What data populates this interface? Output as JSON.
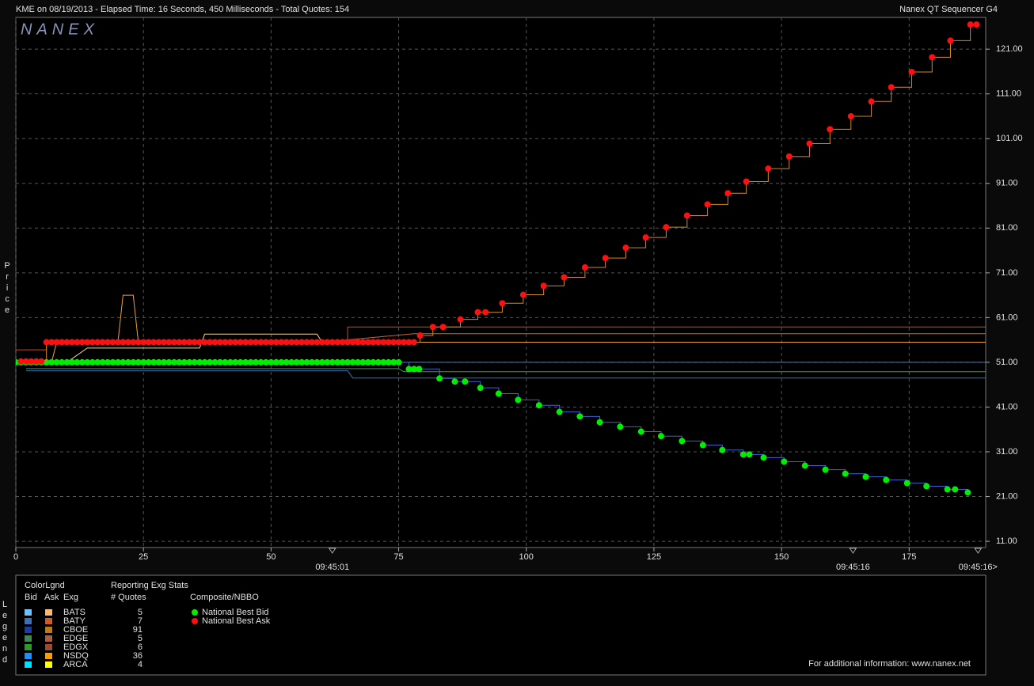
{
  "chart_data": {
    "type": "line",
    "title": "KME on 08/19/2013  -  Elapsed Time: 16 Seconds, 450 Milliseconds  -  Total Quotes: 154",
    "subtitle": "Nanex QT Sequencer G4",
    "logo": "NANEX",
    "y_label": "Price",
    "footer": "For additional information: www.nanex.net",
    "xlim": [
      0,
      190
    ],
    "ylim": [
      9.6,
      128.1
    ],
    "xticks": [
      0,
      25,
      50,
      75,
      100,
      125,
      150,
      175
    ],
    "yticks": [
      {
        "value": 11,
        "label": "11.00"
      },
      {
        "value": 21,
        "label": "21.00"
      },
      {
        "value": 31,
        "label": "31.00"
      },
      {
        "value": 41,
        "label": "41.00"
      },
      {
        "value": 51,
        "label": "51.00"
      },
      {
        "value": 61,
        "label": "61.00"
      },
      {
        "value": 71,
        "label": "71.00"
      },
      {
        "value": 81,
        "label": "81.00"
      },
      {
        "value": 91,
        "label": "91.00"
      },
      {
        "value": 101,
        "label": "101.00"
      },
      {
        "value": 111,
        "label": "111.00"
      },
      {
        "value": 121,
        "label": "121.00"
      }
    ],
    "grid": true,
    "x_annotations": [
      {
        "x": 62,
        "label": "09:45:01"
      },
      {
        "x": 164,
        "label": "09:45:16"
      },
      {
        "x": 188.5,
        "label": "09:45:16>"
      }
    ],
    "series": [
      {
        "name": "National Best Bid",
        "color": "#00ee00",
        "line_color": "#3a66d0",
        "x": [
          0,
          1,
          2,
          3,
          4,
          5,
          6,
          7,
          8,
          9,
          10,
          11,
          12,
          13,
          14,
          15,
          16,
          17,
          18,
          19,
          20,
          21,
          22,
          23,
          24,
          25,
          26,
          27,
          28,
          29,
          30,
          31,
          32,
          33,
          34,
          35,
          36,
          37,
          38,
          39,
          40,
          41,
          42,
          43,
          44,
          45,
          46,
          47,
          48,
          49,
          50,
          51,
          52,
          53,
          54,
          55,
          56,
          57,
          58,
          59,
          60,
          61,
          62,
          63,
          64,
          65,
          66,
          67,
          68,
          69,
          70,
          71,
          72,
          73,
          74,
          75,
          77,
          78,
          79,
          83,
          86,
          88,
          91,
          94.6,
          98.4,
          102.5,
          106.5,
          110.5,
          114.4,
          118.4,
          122.5,
          126.4,
          130.5,
          134.6,
          138.4,
          142.5,
          143.7,
          146.5,
          150.5,
          154.6,
          158.6,
          162.5,
          166.5,
          170.5,
          174.6,
          178.4,
          182.5,
          184,
          186.5
        ],
        "values": [
          51,
          51,
          51,
          51,
          51,
          51,
          51,
          51,
          51,
          51,
          51,
          51,
          51,
          51,
          51,
          51,
          51,
          51,
          51,
          51,
          51,
          51,
          51,
          51,
          51,
          51,
          51,
          51,
          51,
          51,
          51,
          51,
          51,
          51,
          51,
          51,
          51,
          51,
          51,
          51,
          51,
          51,
          51,
          51,
          51,
          51,
          51,
          51,
          51,
          51,
          51,
          51,
          51,
          51,
          51,
          51,
          51,
          51,
          51,
          51,
          51,
          51,
          51,
          51,
          51,
          51,
          51,
          51,
          51,
          51,
          51,
          51,
          51,
          51,
          51,
          51,
          49.5,
          49.5,
          49.5,
          47.4,
          46.7,
          46.7,
          45.3,
          44,
          42.6,
          41.4,
          39.9,
          38.9,
          37.6,
          36.6,
          35.5,
          34.5,
          33.4,
          32.5,
          31.4,
          30.4,
          30.4,
          29.7,
          28.8,
          27.9,
          27,
          26.1,
          25.4,
          24.7,
          24,
          23.3,
          22.6,
          22.6,
          21.9
        ]
      },
      {
        "name": "National Best Ask",
        "color": "#ff1010",
        "line_color": "#d08a20",
        "x": [
          1,
          2,
          3,
          4,
          5,
          6,
          7,
          8,
          9,
          10,
          11,
          12,
          13,
          14,
          15,
          16,
          17,
          18,
          19,
          20,
          21,
          22,
          23,
          24,
          25,
          26,
          27,
          28,
          29,
          30,
          31,
          32,
          33,
          34,
          35,
          36,
          37,
          38,
          39,
          40,
          41,
          42,
          43,
          44,
          45,
          46,
          47,
          48,
          49,
          50,
          51,
          52,
          53,
          54,
          55,
          56,
          57,
          58,
          59,
          60,
          61,
          62,
          63,
          64,
          65,
          66,
          67,
          68,
          69,
          70,
          71,
          72,
          73,
          74,
          75,
          76,
          77,
          78,
          79.2,
          81.7,
          83.7,
          87.1,
          90.5,
          92,
          95.3,
          99.4,
          103.4,
          107.4,
          111.5,
          115.5,
          119.5,
          123.4,
          127.4,
          131.5,
          135.5,
          139.5,
          143.1,
          147.4,
          151.5,
          155.5,
          159.5,
          163.6,
          167.6,
          171.5,
          175.5,
          179.5,
          183.1,
          187,
          188.2
        ],
        "values": [
          51.2,
          51.2,
          51.2,
          51.2,
          51.2,
          55.5,
          55.5,
          55.5,
          55.5,
          55.5,
          55.5,
          55.5,
          55.5,
          55.5,
          55.5,
          55.5,
          55.5,
          55.5,
          55.5,
          55.5,
          55.5,
          55.5,
          55.5,
          55.5,
          55.5,
          55.5,
          55.5,
          55.5,
          55.5,
          55.5,
          55.5,
          55.5,
          55.5,
          55.5,
          55.5,
          55.5,
          55.5,
          55.5,
          55.5,
          55.5,
          55.5,
          55.5,
          55.5,
          55.5,
          55.5,
          55.5,
          55.5,
          55.5,
          55.5,
          55.5,
          55.5,
          55.5,
          55.5,
          55.5,
          55.5,
          55.5,
          55.5,
          55.5,
          55.5,
          55.5,
          55.5,
          55.5,
          55.5,
          55.5,
          55.5,
          55.5,
          55.5,
          55.5,
          55.5,
          55.5,
          55.5,
          55.5,
          55.5,
          55.5,
          55.5,
          55.5,
          55.5,
          55.5,
          57,
          58.9,
          58.9,
          60.6,
          62.2,
          62.2,
          64.2,
          66.1,
          68.1,
          70,
          72.2,
          74.3,
          76.6,
          78.9,
          81.2,
          83.8,
          86.3,
          88.8,
          91.4,
          94.3,
          97,
          99.9,
          103.1,
          106,
          109.3,
          112.5,
          115.9,
          119.2,
          122.9,
          126.5,
          126.5
        ]
      }
    ],
    "quote_lines": [
      {
        "color": "#c0502a",
        "x": [
          0,
          6,
          6,
          65,
          65,
          190
        ],
        "values": [
          53.8,
          53.8,
          55.5,
          55.5,
          58.9,
          58.9
        ]
      },
      {
        "color": "#f0a030",
        "x": [
          0,
          7,
          8,
          20,
          21,
          23,
          24,
          190
        ],
        "values": [
          51,
          51,
          55.5,
          55.5,
          66,
          66,
          55.5,
          55.5
        ]
      },
      {
        "color": "#f0d890",
        "x": [
          10,
          14,
          36,
          37,
          45,
          46,
          59,
          60,
          75
        ],
        "values": [
          51,
          54.2,
          54.2,
          57.3,
          57.3,
          57.3,
          57.3,
          55.5,
          55.5
        ]
      },
      {
        "color": "#c06a30",
        "x": [
          60,
          78,
          190
        ],
        "values": [
          55.5,
          57.4,
          57.4
        ]
      },
      {
        "color": "#4a7ad0",
        "x": [
          0,
          190
        ],
        "values": [
          51,
          51
        ]
      },
      {
        "color": "#3a9a4a",
        "x": [
          2,
          75,
          76,
          190
        ],
        "values": [
          49.6,
          49.6,
          48.9,
          48.9
        ]
      },
      {
        "color": "#3070c0",
        "x": [
          2,
          65,
          66,
          190
        ],
        "values": [
          49.1,
          49.1,
          47.5,
          47.5
        ]
      }
    ],
    "legend": {
      "title": "ColorLgnd",
      "stats_title": "Reporting Exg Stats",
      "col_bid": "Bid",
      "col_ask": "Ask",
      "col_exg": "Exg",
      "col_quotes": "# Quotes",
      "composite_title": "Composite/NBBO",
      "side_label": "Legend",
      "rows": [
        {
          "exg": "BATS",
          "bid_color": "#6ec0ff",
          "ask_color": "#ffb870",
          "quotes": 5
        },
        {
          "exg": "BATY",
          "bid_color": "#3d6fb8",
          "ask_color": "#d05a20",
          "quotes": 7
        },
        {
          "exg": "CBOE",
          "bid_color": "#1a3ea0",
          "ask_color": "#c07a10",
          "quotes": 91
        },
        {
          "exg": "EDGE",
          "bid_color": "#3a8a50",
          "ask_color": "#b05a40",
          "quotes": 5
        },
        {
          "exg": "EDGX",
          "bid_color": "#2a9a2a",
          "ask_color": "#a04830",
          "quotes": 6
        },
        {
          "exg": "NSDQ",
          "bid_color": "#1a90ff",
          "ask_color": "#ff9a00",
          "quotes": 36
        },
        {
          "exg": "ARCA",
          "bid_color": "#00e0ff",
          "ask_color": "#ffff00",
          "quotes": 4
        }
      ]
    }
  }
}
